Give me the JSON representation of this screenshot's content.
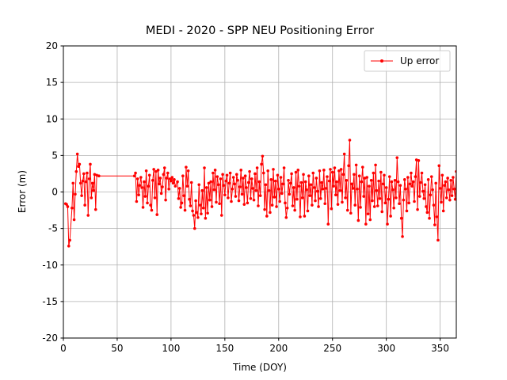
{
  "chart_data": {
    "type": "line",
    "title": "MEDI - 2020 - SPP NEU Positioning Error",
    "x_label": "Time (DOY)",
    "y_label": "Error (m)",
    "xlim": [
      0,
      365
    ],
    "ylim": [
      -20,
      20
    ],
    "xticks": [
      0,
      50,
      100,
      150,
      200,
      250,
      300,
      350
    ],
    "yticks": [
      -20,
      -15,
      -10,
      -5,
      0,
      5,
      10,
      15,
      20
    ],
    "grid": true,
    "legend": "upper right",
    "x": [
      2,
      3,
      4,
      5,
      6,
      8,
      9,
      10,
      11,
      12,
      13,
      14,
      15,
      16,
      17,
      18,
      19,
      20,
      21,
      22,
      23,
      24,
      25,
      26,
      27,
      28,
      29,
      30,
      31,
      33,
      66,
      67,
      68,
      69,
      70,
      71,
      72,
      73,
      74,
      75,
      76,
      77,
      78,
      79,
      80,
      81,
      82,
      83,
      84,
      85,
      86,
      87,
      88,
      89,
      90,
      91,
      92,
      93,
      94,
      95,
      96,
      97,
      98,
      99,
      100,
      101,
      102,
      103,
      104,
      106,
      107,
      108,
      109,
      110,
      111,
      112,
      113,
      114,
      115,
      116,
      117,
      118,
      119,
      120,
      121,
      122,
      123,
      124,
      125,
      126,
      127,
      128,
      129,
      130,
      131,
      132,
      133,
      134,
      135,
      136,
      137,
      138,
      139,
      140,
      141,
      142,
      143,
      144,
      145,
      146,
      147,
      148,
      149,
      150,
      151,
      152,
      153,
      154,
      155,
      156,
      157,
      158,
      159,
      160,
      161,
      162,
      163,
      164,
      165,
      166,
      167,
      168,
      169,
      170,
      171,
      172,
      173,
      174,
      175,
      176,
      177,
      178,
      179,
      180,
      181,
      182,
      183,
      184,
      185,
      186,
      187,
      188,
      189,
      190,
      191,
      192,
      193,
      194,
      195,
      196,
      197,
      198,
      199,
      200,
      201,
      202,
      203,
      204,
      205,
      206,
      207,
      208,
      209,
      210,
      211,
      212,
      213,
      214,
      215,
      216,
      217,
      218,
      219,
      220,
      221,
      222,
      223,
      224,
      225,
      226,
      227,
      228,
      229,
      230,
      231,
      232,
      233,
      234,
      235,
      236,
      237,
      238,
      239,
      240,
      241,
      242,
      243,
      244,
      245,
      246,
      247,
      248,
      249,
      250,
      251,
      252,
      253,
      254,
      255,
      256,
      257,
      258,
      259,
      260,
      261,
      262,
      263,
      264,
      265,
      266,
      267,
      268,
      269,
      270,
      271,
      272,
      273,
      274,
      275,
      276,
      277,
      278,
      279,
      280,
      281,
      282,
      283,
      284,
      285,
      286,
      287,
      288,
      289,
      290,
      291,
      292,
      293,
      294,
      295,
      296,
      297,
      298,
      299,
      300,
      301,
      302,
      303,
      304,
      305,
      306,
      307,
      308,
      309,
      310,
      311,
      312,
      313,
      314,
      315,
      316,
      317,
      318,
      319,
      320,
      321,
      322,
      323,
      324,
      325,
      326,
      327,
      328,
      329,
      330,
      331,
      332,
      333,
      334,
      335,
      336,
      337,
      338,
      339,
      340,
      341,
      342,
      343,
      344,
      345,
      346,
      347,
      348,
      349,
      350,
      351,
      352,
      353,
      354,
      355,
      356,
      357,
      358,
      359,
      360,
      361,
      362,
      363,
      364,
      365
    ],
    "series": [
      {
        "name": "Up error",
        "color": "#ff0000",
        "values": [
          -1.6,
          -1.7,
          -2.0,
          -7.4,
          -6.6,
          -2.2,
          1.2,
          -3.8,
          -0.3,
          2.8,
          5.2,
          3.5,
          3.8,
          1.2,
          -0.5,
          1.5,
          2.5,
          -1.8,
          1.4,
          2.6,
          -3.2,
          1.8,
          3.8,
          -0.8,
          1.2,
          0.2,
          2.4,
          -2.4,
          2.3,
          2.2,
          2.2,
          2.6,
          -1.3,
          1.8,
          -0.4,
          0.9,
          2.0,
          0.6,
          -2.1,
          1.4,
          -0.6,
          2.9,
          -1.5,
          0.8,
          2.3,
          -1.8,
          -2.5,
          1.6,
          3.1,
          -0.8,
          2.8,
          -3.1,
          3.0,
          1.1,
          1.9,
          -0.2,
          0.7,
          2.4,
          3.3,
          -1.1,
          1.9,
          2.6,
          0.4,
          1.8,
          1.5,
          2.0,
          1.2,
          1.7,
          0.8,
          1.4,
          -0.9,
          0.5,
          -2.1,
          -1.5,
          2.2,
          -0.5,
          -2.5,
          3.4,
          0.8,
          2.9,
          -1.0,
          -1.9,
          1.3,
          -2.6,
          -3.2,
          -5.0,
          -1.2,
          -2.8,
          -3.5,
          1.0,
          -1.8,
          -3.0,
          0.2,
          -2.2,
          3.3,
          -3.6,
          0.6,
          -2.9,
          1.2,
          -1.1,
          1.4,
          -2.0,
          2.6,
          0.3,
          3.0,
          -1.4,
          2.1,
          1.0,
          -1.6,
          1.8,
          -3.2,
          2.4,
          0.9,
          -0.4,
          1.5,
          2.3,
          -0.8,
          1.2,
          2.6,
          -1.3,
          0.4,
          2.0,
          1.1,
          -0.6,
          2.4,
          1.6,
          -1.2,
          0.7,
          3.0,
          -0.3,
          1.9,
          -1.7,
          2.2,
          0.6,
          -1.5,
          1.3,
          2.8,
          -0.9,
          1.8,
          0.5,
          -1.1,
          2.5,
          0.2,
          3.3,
          -1.9,
          1.4,
          -0.5,
          3.8,
          4.9,
          2.6,
          -2.4,
          1.0,
          -3.3,
          2.9,
          0.2,
          -2.8,
          1.7,
          -1.8,
          3.1,
          -0.7,
          1.5,
          -2.0,
          2.3,
          0.4,
          -1.3,
          2.0,
          -0.2,
          1.1,
          3.3,
          -1.5,
          -3.5,
          -2.2,
          1.6,
          -0.3,
          1.2,
          2.5,
          -1.9,
          0.6,
          -2.5,
          2.7,
          -1.0,
          3.0,
          0.8,
          -3.4,
          1.3,
          -0.8,
          2.4,
          -3.3,
          1.4,
          0.3,
          -2.6,
          2.2,
          -0.5,
          1.0,
          -1.8,
          2.6,
          0.6,
          -1.2,
          1.9,
          0.1,
          -2.0,
          2.9,
          -0.9,
          1.3,
          0.4,
          3.0,
          -1.6,
          0.5,
          2.1,
          -4.4,
          1.5,
          3.1,
          -2.3,
          2.7,
          0.8,
          3.3,
          -0.4,
          1.4,
          -1.7,
          2.9,
          0.2,
          3.1,
          -1.4,
          2.4,
          5.2,
          -0.8,
          1.6,
          -2.5,
          3.6,
          7.1,
          -2.9,
          1.1,
          0.5,
          2.4,
          -1.8,
          3.7,
          0.4,
          -3.9,
          2.2,
          -2.1,
          1.4,
          3.4,
          -0.6,
          1.9,
          -4.4,
          2.0,
          -3.0,
          0.8,
          -3.8,
          1.6,
          -1.2,
          2.6,
          -2.0,
          3.7,
          0.2,
          -1.9,
          1.5,
          -0.9,
          2.7,
          -2.7,
          1.1,
          2.3,
          -1.5,
          0.6,
          -4.4,
          -1.0,
          2.1,
          -3.3,
          1.4,
          0.3,
          -2.2,
          1.6,
          -0.8,
          4.7,
          1.4,
          -1.6,
          0.9,
          -3.6,
          -6.1,
          -1.1,
          1.7,
          0.4,
          -2.6,
          2.0,
          -1.5,
          1.1,
          2.6,
          0.8,
          1.4,
          -1.3,
          2.1,
          4.4,
          -2.4,
          4.3,
          -0.6,
          1.3,
          2.6,
          0.1,
          -0.9,
          1.0,
          -2.0,
          -2.8,
          1.7,
          -3.6,
          -0.4,
          2.1,
          0.3,
          -1.8,
          -4.5,
          1.2,
          -3.4,
          -6.6,
          3.6,
          0.5,
          -1.4,
          2.3,
          -2.6,
          0.9,
          1.4,
          -0.8,
          1.9,
          0.3,
          -1.1,
          1.6,
          -0.5,
          2.0,
          0.4,
          -1.0,
          2.8
        ]
      }
    ]
  }
}
